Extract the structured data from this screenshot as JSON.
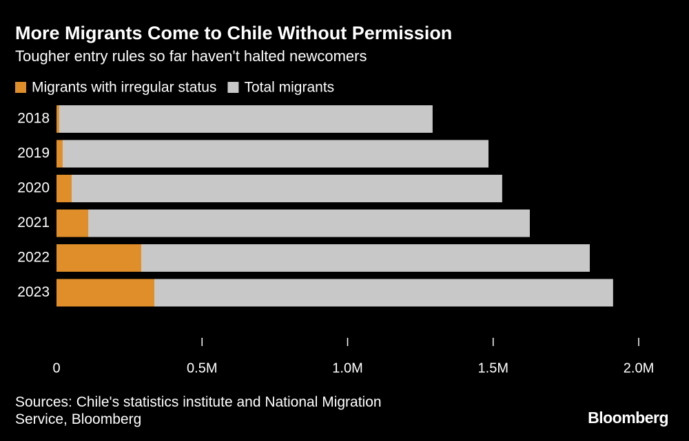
{
  "chart_data": {
    "type": "bar",
    "orientation": "horizontal",
    "title": "More Migrants Come to Chile Without Permission",
    "subtitle": "Tougher entry rules so far haven't halted newcomers",
    "categories": [
      "2018",
      "2019",
      "2020",
      "2021",
      "2022",
      "2023"
    ],
    "series": [
      {
        "name": "Migrants with irregular status",
        "color": "#e08e29",
        "values": [
          9000,
          21000,
          52000,
          109000,
          291000,
          336000
        ]
      },
      {
        "name": "Total migrants",
        "color": "#c8c8c8",
        "values": [
          1292000,
          1484000,
          1531000,
          1626000,
          1832000,
          1912000
        ]
      }
    ],
    "xlim": [
      0,
      2000000
    ],
    "xticks": [
      0,
      {
        "value": 500000,
        "label": "0.5M"
      },
      {
        "value": 1000000,
        "label": "1.0M"
      },
      {
        "value": 1500000,
        "label": "1.5M"
      },
      {
        "value": 2000000,
        "label": "2.0M"
      }
    ],
    "source": "Sources: Chile's statistics institute and National Migration Service, Bloomberg",
    "logo": "Bloomberg"
  }
}
